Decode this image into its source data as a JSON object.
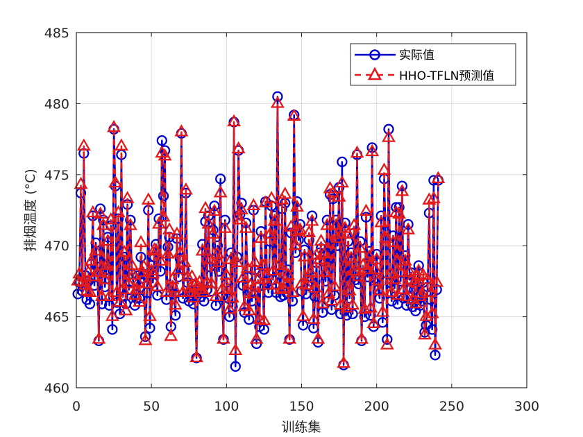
{
  "chart_data": {
    "type": "line",
    "title": "",
    "xlabel": "训练集",
    "ylabel": "排烟温度 (°C)",
    "xlim": [
      0,
      300
    ],
    "ylim": [
      460,
      485
    ],
    "xticks": [
      0,
      50,
      100,
      150,
      200,
      250,
      300
    ],
    "yticks": [
      460,
      465,
      470,
      475,
      480,
      485
    ],
    "grid": true,
    "legend_position": "upper right",
    "series": [
      {
        "name": "实际值",
        "color": "#0000CC",
        "line_style": "solid",
        "marker": "circle",
        "x_start": 1,
        "values": [
          466.6,
          467.4,
          473.7,
          466.8,
          476.5,
          467.9,
          466.2,
          467.5,
          465.9,
          468.7,
          472.1,
          467.2,
          470.2,
          468.5,
          463.3,
          472.6,
          465.9,
          471.8,
          467.1,
          468.3,
          470.6,
          465.8,
          471.4,
          464.1,
          478.2,
          474.2,
          466.0,
          471.9,
          465.2,
          476.4,
          466.4,
          469.2,
          465.9,
          472.9,
          466.9,
          471.8,
          468.0,
          467.4,
          465.8,
          466.3,
          467.9,
          466.3,
          469.2,
          467.7,
          468.0,
          463.6,
          466.7,
          472.5,
          464.2,
          468.6,
          467.4,
          469.2,
          470.1,
          466.5,
          471.9,
          468.2,
          477.4,
          473.5,
          476.7,
          466.2,
          469.9,
          470.6,
          464.3,
          467.1,
          466.6,
          465.1,
          470.5,
          467.8,
          469.1,
          477.9,
          466.3,
          468.3,
          473.7,
          467.4,
          466.1,
          466.5,
          467.3,
          465.9,
          466.6,
          462.1,
          466.7,
          466.9,
          466.4,
          470.1,
          466.1,
          471.7,
          466.9,
          472.1,
          468.5,
          466.8,
          471.1,
          472.8,
          465.8,
          470.0,
          468.2,
          474.7,
          466.4,
          463.4,
          471.8,
          467.4,
          466.3,
          465.0,
          469.5,
          465.7,
          478.7,
          461.5,
          469.2,
          476.7,
          472.2,
          473.0,
          467.2,
          465.3,
          471.6,
          467.8,
          464.8,
          466.7,
          466.1,
          472.5,
          468.3,
          463.1,
          467.1,
          464.3,
          471.0,
          468.0,
          464.1,
          473.1,
          467.4,
          466.7,
          470.3,
          472.8,
          467.6,
          472.1,
          466.7,
          480.5,
          468.0,
          466.4,
          472.6,
          466.5,
          473.0,
          466.7,
          468.3,
          463.4,
          470.9,
          466.1,
          479.2,
          469.5,
          473.1,
          470.4,
          471.5,
          466.8,
          464.4,
          469.7,
          466.6,
          467.2,
          470.4,
          467.5,
          472.1,
          464.2,
          466.4,
          468.8,
          463.2,
          469.5,
          469.8,
          465.3,
          468.9,
          467.5,
          471.8,
          466.1,
          473.6,
          465.5,
          473.3,
          466.5,
          471.8,
          470.0,
          474.1,
          465.2,
          475.9,
          461.6,
          471.6,
          465.1,
          470.3,
          466.3,
          469.5,
          465.2,
          470.9,
          467.6,
          476.4,
          467.3,
          470.3,
          463.3,
          468.1,
          465.0,
          472.0,
          467.8,
          469.6,
          465.1,
          476.9,
          464.3,
          467.7,
          469.4,
          466.9,
          466.3,
          472.1,
          464.6,
          474.7,
          471.0,
          463.4,
          478.2,
          467.4,
          466.1,
          470.7,
          467.0,
          472.7,
          465.9,
          472.7,
          467.5,
          474.2,
          466.3,
          469.3,
          465.8,
          471.5,
          467.6,
          468.1,
          465.7,
          466.9,
          465.4,
          467.2,
          468.6,
          465.8,
          466.1,
          467.4,
          463.9,
          464.4,
          467.1,
          472.3,
          466.2,
          464.1,
          474.6,
          462.3,
          466.9,
          474.6
        ]
      },
      {
        "name": "HHO-TFLN预测值",
        "color": "#E31A1C",
        "line_style": "dashed",
        "marker": "triangle",
        "x_start": 1,
        "values": [
          467.5,
          468.0,
          474.3,
          467.4,
          477.0,
          467.2,
          466.8,
          468.1,
          466.7,
          468.9,
          472.3,
          467.8,
          469.6,
          468.1,
          463.4,
          472.2,
          466.4,
          471.4,
          467.6,
          468.6,
          470.3,
          466.4,
          471.8,
          465.0,
          478.3,
          474.4,
          466.7,
          472.3,
          466.0,
          477.0,
          466.9,
          469.5,
          465.4,
          473.3,
          467.3,
          471.4,
          468.6,
          467.9,
          466.5,
          466.9,
          467.4,
          466.0,
          470.2,
          468.1,
          468.5,
          463.3,
          467.3,
          473.2,
          465.0,
          468.2,
          468.0,
          469.7,
          469.6,
          467.1,
          471.5,
          468.9,
          476.5,
          472.0,
          476.3,
          466.7,
          469.4,
          471.1,
          463.6,
          467.6,
          467.0,
          465.8,
          470.8,
          468.3,
          469.5,
          478.0,
          466.7,
          468.8,
          473.9,
          467.8,
          466.7,
          467.0,
          467.8,
          466.3,
          467.2,
          462.1,
          467.1,
          467.4,
          466.9,
          469.6,
          466.7,
          472.6,
          467.4,
          471.5,
          469.0,
          467.3,
          470.8,
          472.4,
          466.4,
          469.4,
          468.8,
          473.7,
          466.9,
          463.4,
          471.2,
          467.9,
          466.9,
          465.5,
          469.0,
          466.3,
          478.7,
          462.6,
          468.8,
          476.8,
          471.8,
          472.5,
          467.7,
          465.7,
          471.2,
          468.4,
          465.4,
          467.2,
          466.6,
          472.8,
          468.8,
          463.4,
          467.6,
          464.8,
          470.5,
          468.6,
          464.7,
          473.0,
          467.9,
          467.2,
          470.8,
          473.3,
          468.2,
          471.7,
          467.2,
          480.0,
          468.6,
          466.9,
          473.2,
          467.0,
          473.6,
          467.3,
          467.9,
          463.4,
          471.3,
          466.7,
          479.1,
          470.0,
          472.7,
          471.0,
          471.1,
          467.3,
          465.0,
          469.2,
          467.2,
          467.7,
          470.9,
          468.1,
          471.7,
          464.8,
          467.0,
          469.3,
          463.4,
          469.0,
          470.3,
          465.9,
          469.4,
          468.1,
          471.4,
          466.6,
          474.0,
          466.1,
          473.7,
          467.1,
          471.4,
          470.5,
          473.4,
          465.8,
          474.4,
          461.7,
          471.2,
          465.6,
          470.8,
          466.8,
          469.1,
          465.8,
          471.4,
          468.2,
          476.5,
          467.8,
          469.8,
          463.4,
          468.6,
          465.5,
          472.4,
          468.3,
          469.2,
          465.6,
          476.6,
          464.5,
          468.3,
          469.0,
          467.5,
          466.8,
          471.6,
          465.3,
          475.3,
          470.5,
          463.0,
          477.6,
          468.0,
          466.7,
          470.2,
          467.6,
          472.3,
          466.5,
          472.2,
          468.1,
          473.8,
          466.9,
          468.9,
          466.4,
          471.1,
          468.1,
          467.6,
          466.2,
          467.4,
          465.9,
          467.8,
          468.2,
          466.4,
          466.6,
          467.9,
          463.7,
          465.0,
          467.6,
          473.2,
          466.7,
          465.2,
          473.3,
          463.0,
          467.4,
          474.7
        ]
      }
    ]
  },
  "legend": {
    "items": [
      {
        "label": "实际值"
      },
      {
        "label": "HHO-TFLN预测值"
      }
    ]
  }
}
